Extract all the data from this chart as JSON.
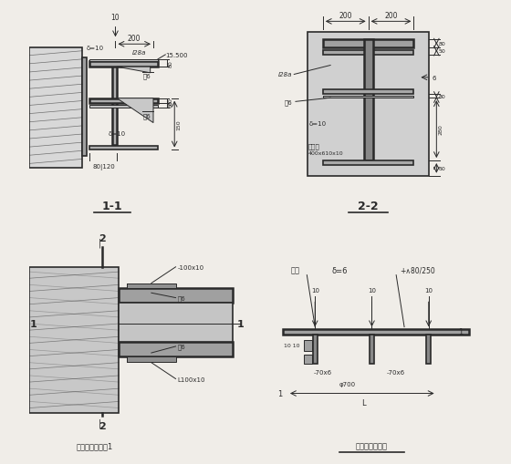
{
  "bg_color": "#f0ede8",
  "line_color": "#2a2a2a",
  "title": "钢梁合节点详图1",
  "title2": "板梁间连接节点",
  "section11_label": "1-1",
  "section22_label": "2-2"
}
